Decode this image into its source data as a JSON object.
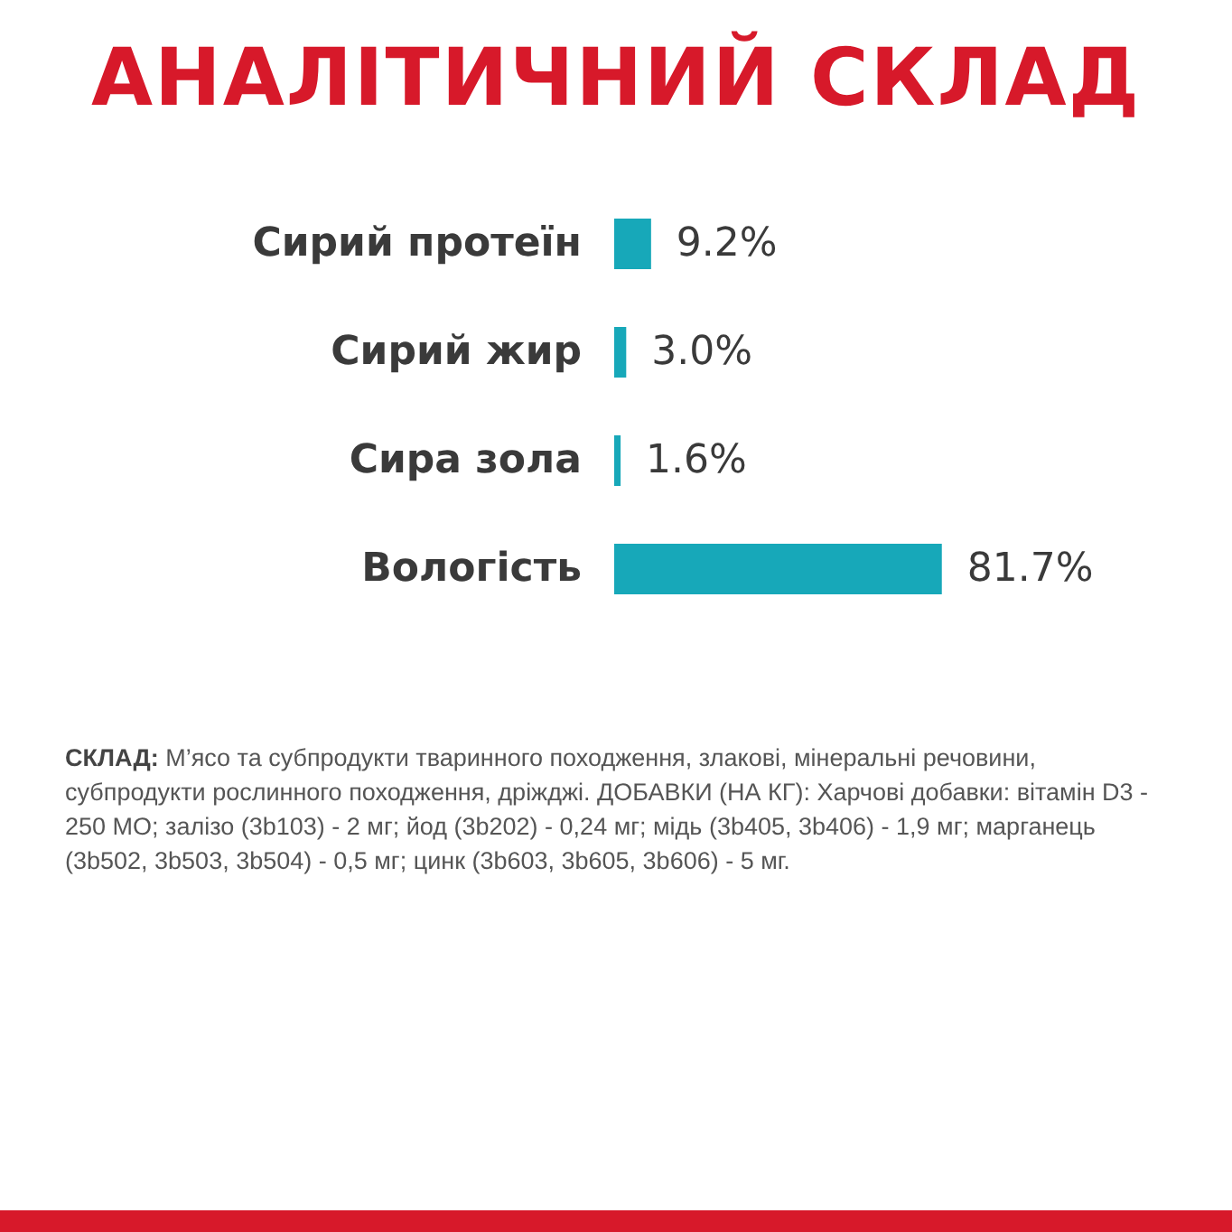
{
  "chart_data": {
    "type": "bar",
    "orientation": "horizontal",
    "title": "АНАЛІТИЧНИЙ СКЛАД",
    "categories": [
      "Сирий протеїн",
      "Сирий жир",
      "Сира зола",
      "Вологість"
    ],
    "values": [
      9.2,
      3.0,
      1.6,
      81.7
    ],
    "value_labels": [
      "9.2%",
      "3.0%",
      "1.6%",
      "81.7%"
    ],
    "color": "#17a8b9",
    "tick_labels": "y",
    "annotations": [
      "СКЛАД: М’ясо та субпродукти тваринного походження, злакові, мінеральні речовини, субпродукти рослинного походження, дріжджі. ДОБАВКИ (НА КГ): Харчові добавки: вітамін D3 - 250 МО; залізо (3b103) - 2 мг; йод (3b202) - 0,24 мг; мідь (3b405, 3b406) - 1,9 мг; марганець (3b502, 3b503, 3b504) - 0,5 мг; цинк (3b603, 3b605, 3b606) - 5 мг."
    ]
  }
}
